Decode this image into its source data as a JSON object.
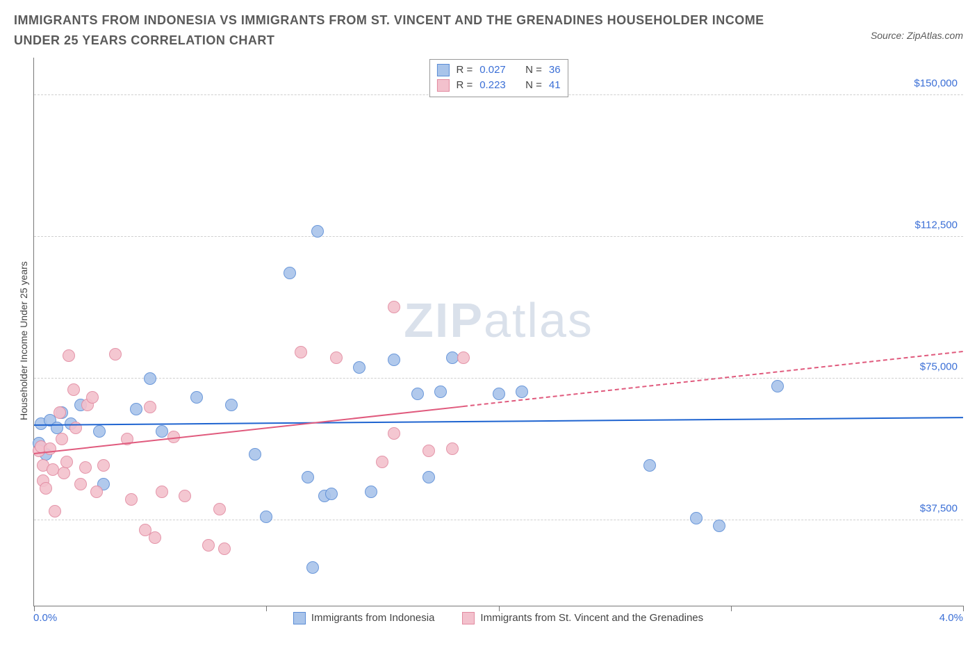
{
  "title": "IMMIGRANTS FROM INDONESIA VS IMMIGRANTS FROM ST. VINCENT AND THE GRENADINES HOUSEHOLDER INCOME UNDER 25 YEARS CORRELATION CHART",
  "source": "Source: ZipAtlas.com",
  "ylabel": "Householder Income Under 25 years",
  "watermark_a": "ZIP",
  "watermark_b": "atlas",
  "chart": {
    "type": "scatter",
    "background_color": "#ffffff",
    "grid_color": "#cfcfcf",
    "axis_color": "#777777",
    "xlim": [
      0.0,
      4.0
    ],
    "ylim": [
      15000,
      160000
    ],
    "xticks": [
      0.0,
      1.0,
      2.0,
      3.0,
      4.0
    ],
    "xtick_labels_ends": {
      "left": "0.0%",
      "right": "4.0%"
    },
    "yticks": [
      37500,
      75000,
      112500,
      150000
    ],
    "ytick_labels": [
      "$37,500",
      "$75,000",
      "$112,500",
      "$150,000"
    ],
    "marker_radius": 9,
    "marker_border_width": 1.5,
    "marker_fill_opacity": 0.35,
    "trend_line_width": 2
  },
  "series": [
    {
      "name": "Immigrants from Indonesia",
      "label": "Immigrants from Indonesia",
      "color_border": "#5b8dd6",
      "color_fill": "#a9c4ea",
      "trend_color": "#1f64d0",
      "r": "0.027",
      "n": "36",
      "trend": {
        "y_at_xmin": 62500,
        "y_at_xmax": 64500,
        "solid_until_x": 4.0
      },
      "points": [
        {
          "x": 0.02,
          "y": 58000
        },
        {
          "x": 0.03,
          "y": 63000
        },
        {
          "x": 0.05,
          "y": 55000
        },
        {
          "x": 0.07,
          "y": 64000
        },
        {
          "x": 0.1,
          "y": 62000
        },
        {
          "x": 0.12,
          "y": 66000
        },
        {
          "x": 0.16,
          "y": 63000
        },
        {
          "x": 0.2,
          "y": 68000
        },
        {
          "x": 0.28,
          "y": 61000
        },
        {
          "x": 0.3,
          "y": 47000
        },
        {
          "x": 0.44,
          "y": 67000
        },
        {
          "x": 0.5,
          "y": 75000
        },
        {
          "x": 0.55,
          "y": 61000
        },
        {
          "x": 0.7,
          "y": 70000
        },
        {
          "x": 0.85,
          "y": 68000
        },
        {
          "x": 0.95,
          "y": 55000
        },
        {
          "x": 1.0,
          "y": 38500
        },
        {
          "x": 1.1,
          "y": 103000
        },
        {
          "x": 1.18,
          "y": 49000
        },
        {
          "x": 1.2,
          "y": 25000
        },
        {
          "x": 1.22,
          "y": 114000
        },
        {
          "x": 1.25,
          "y": 44000
        },
        {
          "x": 1.28,
          "y": 44500
        },
        {
          "x": 1.4,
          "y": 78000
        },
        {
          "x": 1.45,
          "y": 45000
        },
        {
          "x": 1.55,
          "y": 80000
        },
        {
          "x": 1.65,
          "y": 71000
        },
        {
          "x": 1.7,
          "y": 49000
        },
        {
          "x": 1.75,
          "y": 71500
        },
        {
          "x": 1.8,
          "y": 80500
        },
        {
          "x": 2.0,
          "y": 71000
        },
        {
          "x": 2.1,
          "y": 71500
        },
        {
          "x": 2.65,
          "y": 52000
        },
        {
          "x": 2.85,
          "y": 38000
        },
        {
          "x": 2.95,
          "y": 36000
        },
        {
          "x": 3.2,
          "y": 73000
        }
      ]
    },
    {
      "name": "Immigrants from St. Vincent and the Grenadines",
      "label": "Immigrants from St. Vincent and the Grenadines",
      "color_border": "#e28aa0",
      "color_fill": "#f3c1cd",
      "trend_color": "#e05a7d",
      "r": "0.223",
      "n": "41",
      "trend": {
        "y_at_xmin": 55000,
        "y_at_xmax": 82000,
        "solid_until_x": 1.85
      },
      "points": [
        {
          "x": 0.02,
          "y": 56000
        },
        {
          "x": 0.03,
          "y": 57000
        },
        {
          "x": 0.04,
          "y": 48000
        },
        {
          "x": 0.04,
          "y": 52000
        },
        {
          "x": 0.05,
          "y": 46000
        },
        {
          "x": 0.07,
          "y": 56500
        },
        {
          "x": 0.08,
          "y": 51000
        },
        {
          "x": 0.09,
          "y": 40000
        },
        {
          "x": 0.11,
          "y": 66000
        },
        {
          "x": 0.12,
          "y": 59000
        },
        {
          "x": 0.13,
          "y": 50000
        },
        {
          "x": 0.14,
          "y": 53000
        },
        {
          "x": 0.15,
          "y": 81000
        },
        {
          "x": 0.17,
          "y": 72000
        },
        {
          "x": 0.18,
          "y": 62000
        },
        {
          "x": 0.2,
          "y": 47000
        },
        {
          "x": 0.22,
          "y": 51500
        },
        {
          "x": 0.23,
          "y": 68000
        },
        {
          "x": 0.25,
          "y": 70000
        },
        {
          "x": 0.27,
          "y": 45000
        },
        {
          "x": 0.3,
          "y": 52000
        },
        {
          "x": 0.35,
          "y": 81500
        },
        {
          "x": 0.4,
          "y": 59000
        },
        {
          "x": 0.42,
          "y": 43000
        },
        {
          "x": 0.48,
          "y": 35000
        },
        {
          "x": 0.5,
          "y": 67500
        },
        {
          "x": 0.52,
          "y": 33000
        },
        {
          "x": 0.55,
          "y": 45000
        },
        {
          "x": 0.6,
          "y": 59500
        },
        {
          "x": 0.65,
          "y": 44000
        },
        {
          "x": 0.75,
          "y": 31000
        },
        {
          "x": 0.8,
          "y": 40500
        },
        {
          "x": 0.82,
          "y": 30000
        },
        {
          "x": 1.15,
          "y": 82000
        },
        {
          "x": 1.3,
          "y": 80500
        },
        {
          "x": 1.5,
          "y": 53000
        },
        {
          "x": 1.55,
          "y": 94000
        },
        {
          "x": 1.55,
          "y": 60500
        },
        {
          "x": 1.7,
          "y": 56000
        },
        {
          "x": 1.8,
          "y": 56500
        },
        {
          "x": 1.85,
          "y": 80500
        }
      ]
    }
  ],
  "legend_top": {
    "r_label": "R =",
    "n_label": "N ="
  }
}
